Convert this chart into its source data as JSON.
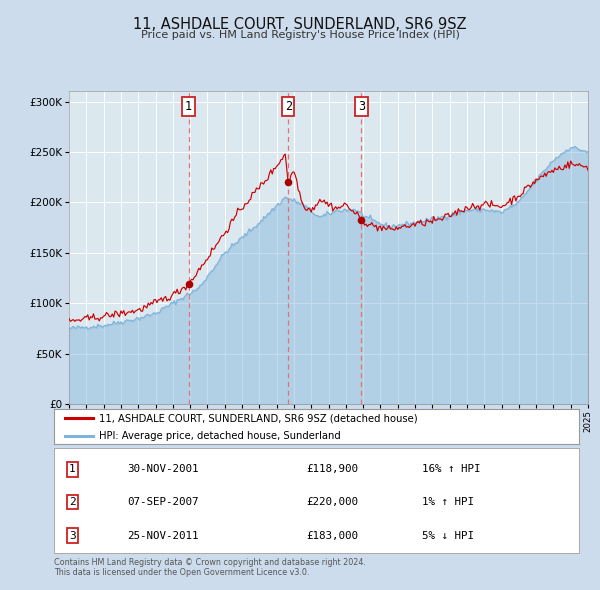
{
  "title_line1": "11, ASHDALE COURT, SUNDERLAND, SR6 9SZ",
  "title_line2": "Price paid vs. HM Land Registry's House Price Index (HPI)",
  "sale_prices": [
    118900,
    220000,
    183000
  ],
  "sale_decimal": [
    2001.915,
    2007.676,
    2011.899
  ],
  "sale_labels": [
    "1",
    "2",
    "3"
  ],
  "sale_info": [
    [
      "30-NOV-2001",
      "£118,900",
      "16% ↑ HPI"
    ],
    [
      "07-SEP-2007",
      "£220,000",
      "1% ↑ HPI"
    ],
    [
      "25-NOV-2011",
      "£183,000",
      "5% ↓ HPI"
    ]
  ],
  "legend_line1": "11, ASHDALE COURT, SUNDERLAND, SR6 9SZ (detached house)",
  "legend_line2": "HPI: Average price, detached house, Sunderland",
  "price_color": "#cc0000",
  "hpi_color": "#7fb3d9",
  "vline_color": "#e87070",
  "dot_color": "#aa0000",
  "bg_color": "#cddcec",
  "plot_bg": "#dce8f0",
  "grid_color": "#ffffff",
  "ylim": [
    0,
    310000
  ],
  "yticks": [
    0,
    50000,
    100000,
    150000,
    200000,
    250000,
    300000
  ],
  "footer_line1": "Contains HM Land Registry data © Crown copyright and database right 2024.",
  "footer_line2": "This data is licensed under the Open Government Licence v3.0.",
  "hpi_anchors": {
    "1995.0": 75000,
    "1997.0": 78000,
    "1999.0": 85000,
    "2000.0": 90000,
    "2001.0": 100000,
    "2002.5": 115000,
    "2004.0": 150000,
    "2006.0": 180000,
    "2007.5": 205000,
    "2008.5": 198000,
    "2009.5": 185000,
    "2010.5": 192000,
    "2011.5": 193000,
    "2012.5": 182000,
    "2013.5": 176000,
    "2015.0": 180000,
    "2016.5": 185000,
    "2018.0": 192000,
    "2019.0": 193000,
    "2020.0": 190000,
    "2021.0": 200000,
    "2022.0": 222000,
    "2023.0": 242000,
    "2024.0": 255000,
    "2025.0": 250000
  },
  "prop_anchors": {
    "1995.0": 82000,
    "1997.0": 87000,
    "1999.0": 93000,
    "2001.0": 108000,
    "2001.915": 118900,
    "2003.0": 145000,
    "2005.0": 195000,
    "2006.5": 225000,
    "2007.5": 248000,
    "2007.676": 220000,
    "2008.0": 232000,
    "2008.5": 198000,
    "2009.0": 192000,
    "2009.5": 203000,
    "2010.0": 198000,
    "2010.5": 194000,
    "2011.0": 198000,
    "2011.899": 183000,
    "2012.5": 177000,
    "2013.5": 173000,
    "2015.0": 178000,
    "2016.5": 183000,
    "2018.0": 195000,
    "2019.0": 198000,
    "2020.0": 196000,
    "2021.0": 207000,
    "2022.0": 222000,
    "2023.0": 232000,
    "2024.0": 238000,
    "2025.0": 235000
  }
}
